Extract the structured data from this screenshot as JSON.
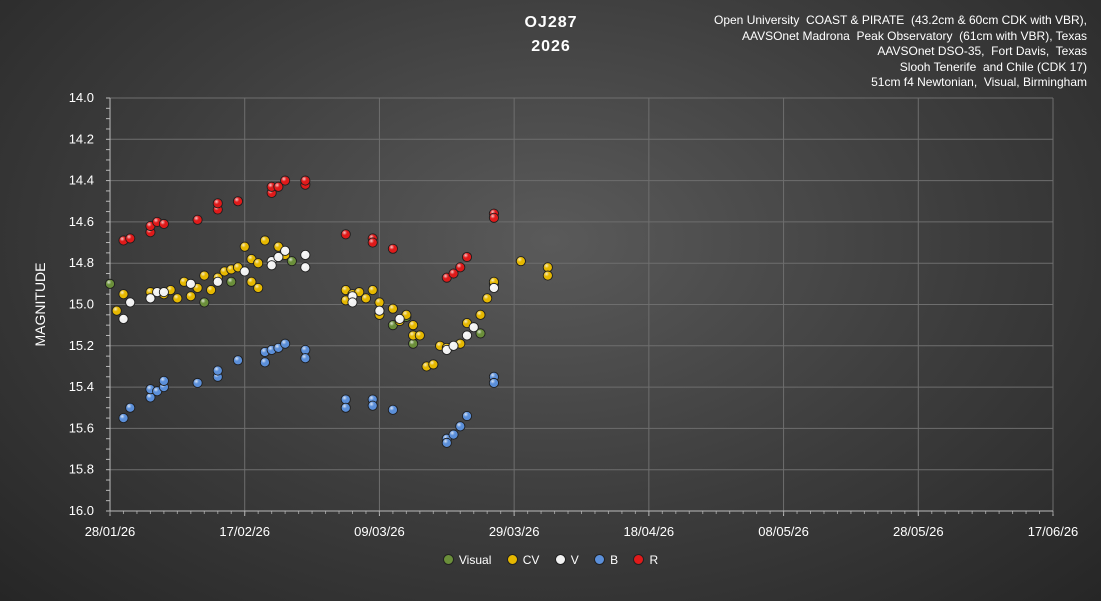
{
  "chart_data": {
    "type": "scatter",
    "title": "OJ287",
    "subtitle": "2026",
    "credits": [
      "Open University  COAST & PIRATE  (43.2cm & 60cm CDK with VBR),",
      "AAVSOnet Madrona  Peak Observatory  (61cm with VBR), Texas",
      "AAVSOnet DSO-35,  Fort Davis,  Texas",
      "Slooh Tenerife  and Chile (CDK 17)",
      "51cm f4 Newtonian,  Visual, Birmingham"
    ],
    "ylabel": "MAGNITUDE",
    "xlabel": "",
    "ylim": [
      14.0,
      16.0
    ],
    "y_inverted": true,
    "yticks": [
      "14.0",
      "14.2",
      "14.4",
      "14.6",
      "14.8",
      "15.0",
      "15.2",
      "15.4",
      "15.6",
      "15.8",
      "16.0"
    ],
    "xlim": [
      "2026-01-28",
      "2026-06-17"
    ],
    "xticks": [
      "28/01/26",
      "17/02/26",
      "09/03/26",
      "29/03/26",
      "18/04/26",
      "08/05/26",
      "28/05/26",
      "17/06/26"
    ],
    "grid": true,
    "legend_position": "bottom",
    "series": [
      {
        "name": "Visual",
        "color": "#6b8f3a",
        "points": [
          [
            "2026-01-28",
            14.9
          ],
          [
            "2026-02-11",
            14.99
          ],
          [
            "2026-02-15",
            14.89
          ],
          [
            "2026-02-24",
            14.79
          ],
          [
            "2026-03-11",
            15.1
          ],
          [
            "2026-03-13",
            15.06
          ],
          [
            "2026-03-14",
            15.19
          ],
          [
            "2026-03-17",
            15.29
          ],
          [
            "2026-03-24",
            15.14
          ],
          [
            "2026-03-26",
            14.9
          ]
        ]
      },
      {
        "name": "CV",
        "color": "#e6b800",
        "points": [
          [
            "2026-01-29",
            15.03
          ],
          [
            "2026-01-30",
            14.95
          ],
          [
            "2026-02-03",
            14.94
          ],
          [
            "2026-02-05",
            14.95
          ],
          [
            "2026-02-06",
            14.93
          ],
          [
            "2026-02-07",
            14.97
          ],
          [
            "2026-02-08",
            14.89
          ],
          [
            "2026-02-09",
            14.96
          ],
          [
            "2026-02-10",
            14.92
          ],
          [
            "2026-02-11",
            14.86
          ],
          [
            "2026-02-12",
            14.93
          ],
          [
            "2026-02-13",
            14.87
          ],
          [
            "2026-02-14",
            14.84
          ],
          [
            "2026-02-15",
            14.83
          ],
          [
            "2026-02-16",
            14.82
          ],
          [
            "2026-02-17",
            14.72
          ],
          [
            "2026-02-18",
            14.78
          ],
          [
            "2026-02-19",
            14.8
          ],
          [
            "2026-02-20",
            14.69
          ],
          [
            "2026-02-22",
            14.72
          ],
          [
            "2026-02-23",
            14.76
          ],
          [
            "2026-02-18",
            14.89
          ],
          [
            "2026-02-19",
            14.92
          ],
          [
            "2026-03-04",
            14.93
          ],
          [
            "2026-03-04",
            14.98
          ],
          [
            "2026-03-05",
            14.95
          ],
          [
            "2026-03-06",
            14.94
          ],
          [
            "2026-03-07",
            14.97
          ],
          [
            "2026-03-08",
            14.93
          ],
          [
            "2026-03-09",
            14.99
          ],
          [
            "2026-03-09",
            15.05
          ],
          [
            "2026-03-11",
            15.02
          ],
          [
            "2026-03-12",
            15.08
          ],
          [
            "2026-03-13",
            15.05
          ],
          [
            "2026-03-14",
            15.1
          ],
          [
            "2026-03-14",
            15.15
          ],
          [
            "2026-03-15",
            15.15
          ],
          [
            "2026-03-16",
            15.3
          ],
          [
            "2026-03-17",
            15.29
          ],
          [
            "2026-03-18",
            15.2
          ],
          [
            "2026-03-19",
            15.21
          ],
          [
            "2026-03-21",
            15.19
          ],
          [
            "2026-03-22",
            15.09
          ],
          [
            "2026-03-24",
            15.05
          ],
          [
            "2026-03-25",
            14.97
          ],
          [
            "2026-03-26",
            14.89
          ],
          [
            "2026-03-30",
            14.79
          ],
          [
            "2026-04-03",
            14.82
          ],
          [
            "2026-04-03",
            14.86
          ]
        ]
      },
      {
        "name": "V",
        "color": "#f2f2f2",
        "points": [
          [
            "2026-01-30",
            15.07
          ],
          [
            "2026-01-31",
            14.99
          ],
          [
            "2026-02-03",
            14.97
          ],
          [
            "2026-02-04",
            14.94
          ],
          [
            "2026-02-05",
            14.94
          ],
          [
            "2026-02-09",
            14.9
          ],
          [
            "2026-02-13",
            14.89
          ],
          [
            "2026-02-17",
            14.84
          ],
          [
            "2026-02-21",
            14.79
          ],
          [
            "2026-02-21",
            14.81
          ],
          [
            "2026-02-22",
            14.77
          ],
          [
            "2026-02-23",
            14.74
          ],
          [
            "2026-02-26",
            14.76
          ],
          [
            "2026-02-26",
            14.82
          ],
          [
            "2026-03-05",
            14.96
          ],
          [
            "2026-03-05",
            14.99
          ],
          [
            "2026-03-09",
            15.03
          ],
          [
            "2026-03-12",
            15.07
          ],
          [
            "2026-03-19",
            15.22
          ],
          [
            "2026-03-20",
            15.2
          ],
          [
            "2026-03-22",
            15.15
          ],
          [
            "2026-03-23",
            15.11
          ],
          [
            "2026-03-26",
            14.92
          ]
        ]
      },
      {
        "name": "B",
        "color": "#5b8fd9",
        "points": [
          [
            "2026-01-30",
            15.55
          ],
          [
            "2026-01-31",
            15.5
          ],
          [
            "2026-02-03",
            15.45
          ],
          [
            "2026-02-03",
            15.41
          ],
          [
            "2026-02-04",
            15.42
          ],
          [
            "2026-02-05",
            15.4
          ],
          [
            "2026-02-05",
            15.37
          ],
          [
            "2026-02-10",
            15.38
          ],
          [
            "2026-02-13",
            15.35
          ],
          [
            "2026-02-13",
            15.32
          ],
          [
            "2026-02-16",
            15.27
          ],
          [
            "2026-02-20",
            15.28
          ],
          [
            "2026-02-20",
            15.23
          ],
          [
            "2026-02-21",
            15.22
          ],
          [
            "2026-02-22",
            15.21
          ],
          [
            "2026-02-23",
            15.19
          ],
          [
            "2026-02-26",
            15.22
          ],
          [
            "2026-02-26",
            15.26
          ],
          [
            "2026-03-04",
            15.46
          ],
          [
            "2026-03-04",
            15.5
          ],
          [
            "2026-03-08",
            15.46
          ],
          [
            "2026-03-08",
            15.49
          ],
          [
            "2026-03-11",
            15.51
          ],
          [
            "2026-03-19",
            15.65
          ],
          [
            "2026-03-19",
            15.67
          ],
          [
            "2026-03-20",
            15.63
          ],
          [
            "2026-03-21",
            15.59
          ],
          [
            "2026-03-22",
            15.54
          ],
          [
            "2026-03-26",
            15.35
          ],
          [
            "2026-03-26",
            15.38
          ]
        ]
      },
      {
        "name": "R",
        "color": "#e01a1a",
        "points": [
          [
            "2026-01-30",
            14.69
          ],
          [
            "2026-01-31",
            14.68
          ],
          [
            "2026-02-03",
            14.65
          ],
          [
            "2026-02-03",
            14.62
          ],
          [
            "2026-02-04",
            14.6
          ],
          [
            "2026-02-05",
            14.61
          ],
          [
            "2026-02-10",
            14.59
          ],
          [
            "2026-02-13",
            14.54
          ],
          [
            "2026-02-13",
            14.51
          ],
          [
            "2026-02-16",
            14.5
          ],
          [
            "2026-02-21",
            14.46
          ],
          [
            "2026-02-21",
            14.43
          ],
          [
            "2026-02-22",
            14.43
          ],
          [
            "2026-02-23",
            14.4
          ],
          [
            "2026-02-26",
            14.42
          ],
          [
            "2026-02-26",
            14.4
          ],
          [
            "2026-03-04",
            14.66
          ],
          [
            "2026-03-08",
            14.68
          ],
          [
            "2026-03-08",
            14.7
          ],
          [
            "2026-03-11",
            14.73
          ],
          [
            "2026-03-19",
            14.87
          ],
          [
            "2026-03-20",
            14.85
          ],
          [
            "2026-03-21",
            14.82
          ],
          [
            "2026-03-22",
            14.77
          ],
          [
            "2026-03-26",
            14.56
          ],
          [
            "2026-03-26",
            14.58
          ]
        ]
      }
    ]
  }
}
